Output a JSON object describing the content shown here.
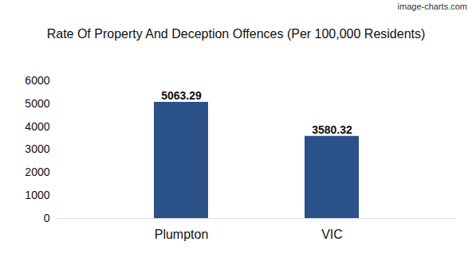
{
  "chart_data": {
    "type": "bar",
    "title": "Rate Of Property And Deception Offences (Per 100,000 Residents)",
    "annotations": [
      "image-charts.com"
    ],
    "categories": [
      "Plumpton",
      "VIC"
    ],
    "values": [
      5063.29,
      3580.32
    ],
    "color": "#2b5189",
    "ylim": [
      0,
      6000
    ],
    "yticks": [
      0,
      1000,
      2000,
      3000,
      4000,
      5000,
      6000
    ],
    "grid": false,
    "data_labels": true
  }
}
